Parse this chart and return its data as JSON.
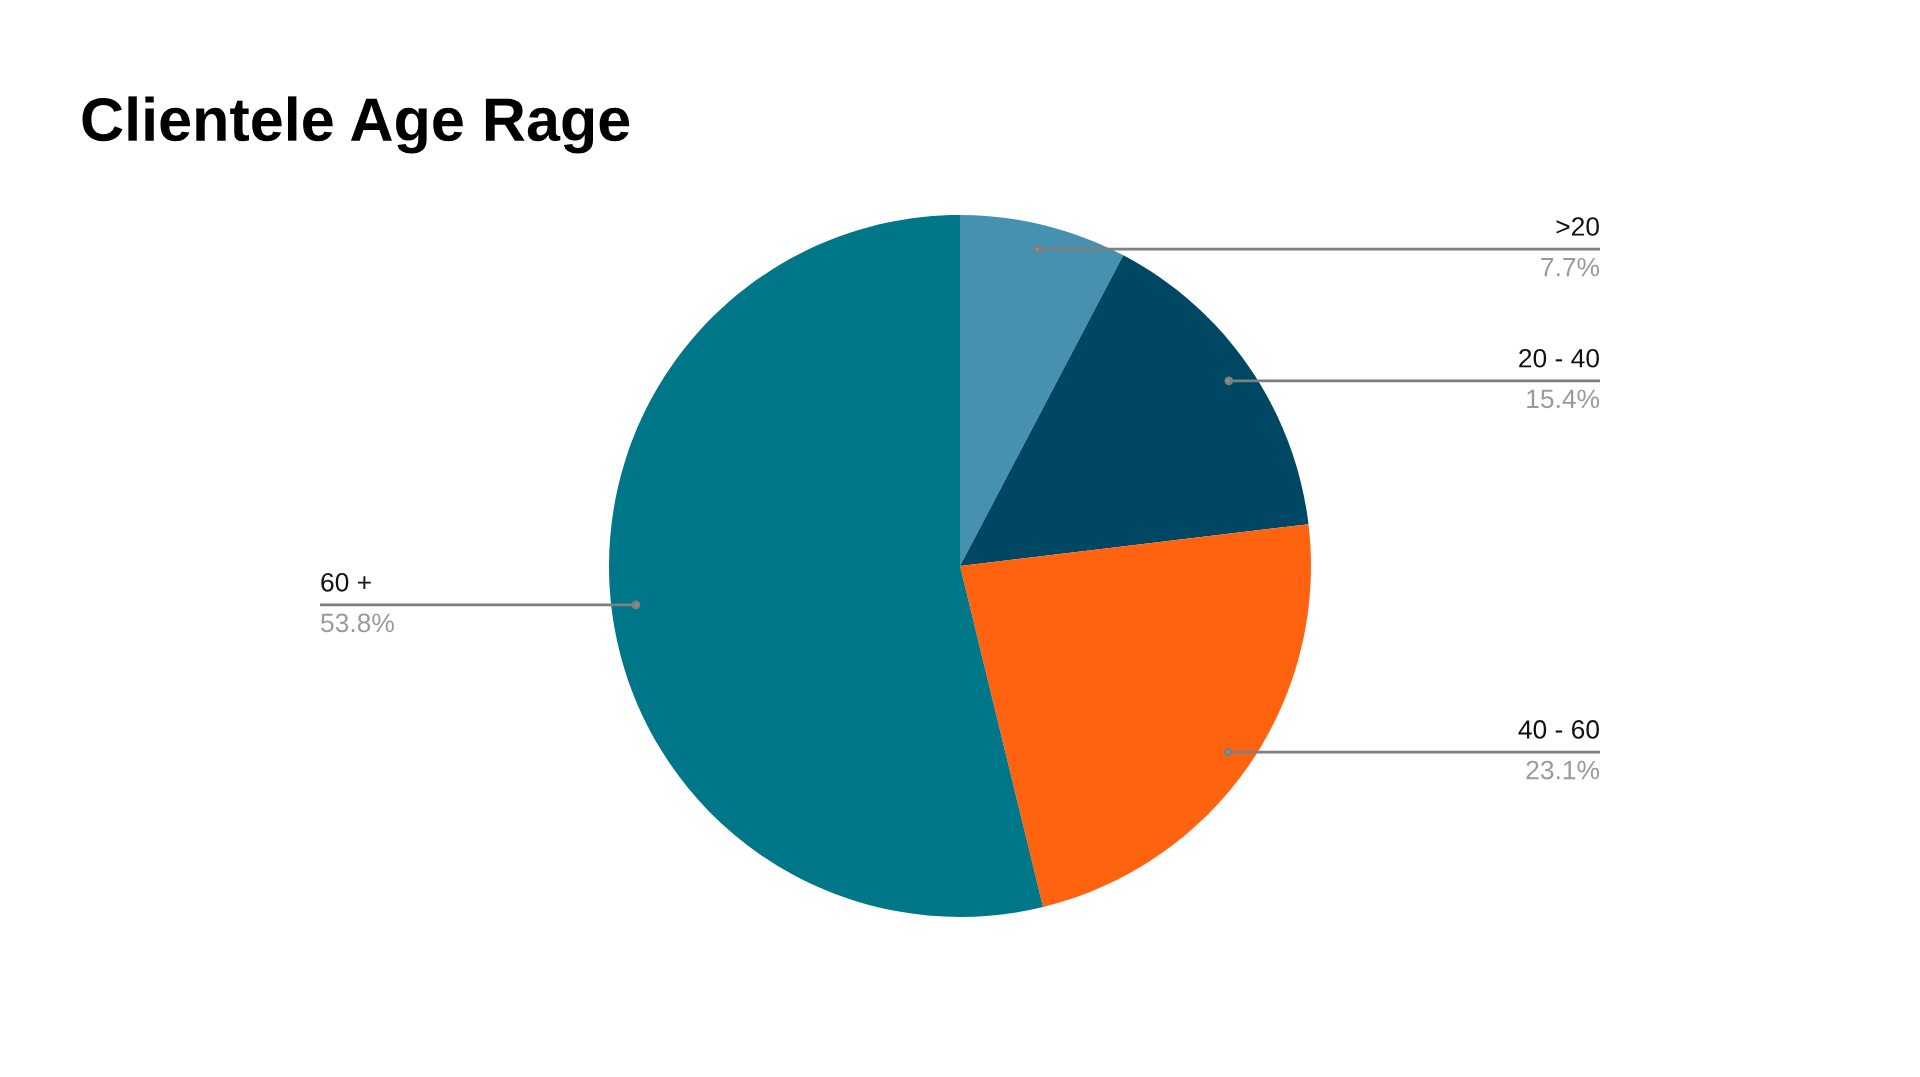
{
  "chart_data": {
    "type": "pie",
    "title": "Clientele Age Rage",
    "categories": [
      ">20",
      "20 - 40",
      "40 - 60",
      "60 +"
    ],
    "values": [
      7.7,
      15.4,
      23.1,
      53.8
    ],
    "colors": [
      "#4791b0",
      "#004764",
      "#ff6310",
      "#007788"
    ],
    "value_labels": [
      "7.7%",
      "15.4%",
      "23.1%",
      "53.8%"
    ],
    "legend": false
  }
}
